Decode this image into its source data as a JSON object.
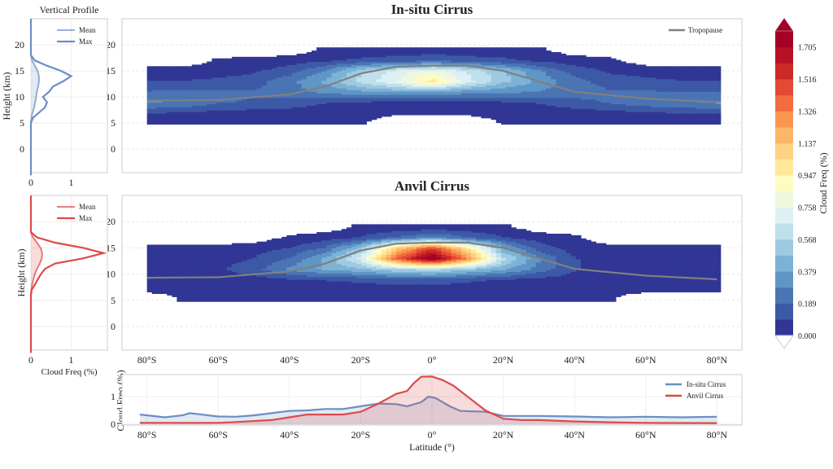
{
  "chart_data": {
    "type": "heatmap",
    "colorbar": {
      "label": "Cloud Freq (%)",
      "ticks": [
        "0.000",
        "0.189",
        "0.379",
        "0.568",
        "0.758",
        "0.947",
        "1.137",
        "1.326",
        "1.516",
        "1.705"
      ],
      "range": [
        0,
        1.8
      ],
      "extend": "both",
      "colormap": "RdYlBu_r",
      "colors": [
        "#313695",
        "#3c59a6",
        "#4a74b4",
        "#5f96c6",
        "#7cb2d6",
        "#9ecae1",
        "#bfdfeb",
        "#ddf0f4",
        "#f0f8dc",
        "#fefcc0",
        "#fee99a",
        "#fed283",
        "#fdb567",
        "#fa9650",
        "#f26c3e",
        "#e34933",
        "#cd2a27",
        "#b71127",
        "#a50026"
      ],
      "under_color": "#ffffff",
      "over_color": "#a50026"
    },
    "heatmaps": [
      {
        "title": "In-situ Cirrus",
        "xlim": [
          -87,
          87
        ],
        "ylim": [
          -4.5,
          25
        ],
        "yticks": [
          0,
          5,
          10,
          15,
          20
        ],
        "xticks": [
          -80,
          -60,
          -40,
          -20,
          0,
          20,
          40,
          60,
          80
        ],
        "xticklabels": [
          "80°S",
          "60°S",
          "40°S",
          "20°S",
          "0°",
          "20°N",
          "40°N",
          "60°N",
          "80°N"
        ],
        "show_xticklabels": false,
        "legend": "Tropopause",
        "lat": [
          -80,
          -70,
          -60,
          -50,
          -40,
          -30,
          -20,
          -10,
          0,
          10,
          20,
          30,
          40,
          50,
          60,
          70,
          80
        ],
        "height": [
          5,
          7,
          9,
          11,
          13,
          15,
          17,
          19
        ],
        "values": [
          [
            0.03,
            0.03,
            0.02,
            0.02,
            0.02,
            0.01,
            0.01,
            null,
            null,
            null,
            0.01,
            0.01,
            0.02,
            0.02,
            0.02,
            0.03,
            0.03
          ],
          [
            0.1,
            0.08,
            0.06,
            0.05,
            0.05,
            0.04,
            0.03,
            0.02,
            0.02,
            0.02,
            0.03,
            0.04,
            0.05,
            0.06,
            0.08,
            0.1,
            0.1
          ],
          [
            0.3,
            0.28,
            0.2,
            0.18,
            0.15,
            0.1,
            0.08,
            0.06,
            0.05,
            0.06,
            0.08,
            0.1,
            0.15,
            0.2,
            0.25,
            0.28,
            0.3
          ],
          [
            0.2,
            0.22,
            0.2,
            0.2,
            0.25,
            0.3,
            0.35,
            0.38,
            0.38,
            0.32,
            0.3,
            0.28,
            0.25,
            0.2,
            0.2,
            0.2,
            0.2
          ],
          [
            0.1,
            0.1,
            0.12,
            0.15,
            0.25,
            0.4,
            0.6,
            0.75,
            1.0,
            0.7,
            0.5,
            0.35,
            0.22,
            0.15,
            0.12,
            0.1,
            0.1
          ],
          [
            0.04,
            0.04,
            0.05,
            0.08,
            0.15,
            0.3,
            0.55,
            0.7,
            0.8,
            0.65,
            0.5,
            0.3,
            0.15,
            0.08,
            0.06,
            0.05,
            0.05
          ],
          [
            null,
            null,
            0.02,
            0.03,
            0.05,
            0.08,
            0.12,
            0.15,
            0.2,
            0.15,
            0.12,
            0.08,
            0.05,
            0.03,
            null,
            null,
            null
          ],
          [
            null,
            null,
            null,
            null,
            null,
            0.02,
            0.03,
            0.03,
            0.03,
            0.03,
            0.03,
            0.02,
            null,
            null,
            null,
            null,
            null
          ]
        ]
      },
      {
        "title": "Anvil Cirrus",
        "xlim": [
          -87,
          87
        ],
        "ylim": [
          -4.5,
          25
        ],
        "yticks": [
          0,
          5,
          10,
          15,
          20
        ],
        "xticks": [
          -80,
          -60,
          -40,
          -20,
          0,
          20,
          40,
          60,
          80
        ],
        "xticklabels": [
          "80°S",
          "60°S",
          "40°S",
          "20°S",
          "0°",
          "20°N",
          "40°N",
          "60°N",
          "80°N"
        ],
        "show_xticklabels": true,
        "lat": [
          -80,
          -70,
          -60,
          -50,
          -40,
          -30,
          -20,
          -10,
          0,
          10,
          20,
          30,
          40,
          50,
          60,
          70,
          80
        ],
        "height": [
          5,
          7,
          9,
          11,
          13,
          15,
          17,
          19
        ],
        "values": [
          [
            null,
            0.01,
            0.01,
            0.01,
            0.01,
            0.01,
            0.01,
            0.01,
            0.01,
            0.01,
            0.01,
            0.01,
            0.01,
            0.01,
            null,
            null,
            null
          ],
          [
            0.02,
            0.02,
            0.02,
            0.02,
            0.03,
            0.03,
            0.03,
            0.03,
            0.03,
            0.03,
            0.03,
            0.02,
            0.02,
            0.02,
            0.02,
            0.02,
            0.02
          ],
          [
            0.05,
            0.05,
            0.05,
            0.06,
            0.08,
            0.1,
            0.12,
            0.15,
            0.15,
            0.12,
            0.08,
            0.06,
            0.05,
            0.05,
            0.05,
            0.05,
            0.05
          ],
          [
            0.06,
            0.06,
            0.08,
            0.15,
            0.3,
            0.4,
            0.45,
            0.55,
            0.6,
            0.5,
            0.4,
            0.25,
            0.1,
            0.06,
            0.05,
            0.05,
            0.05
          ],
          [
            0.05,
            0.05,
            0.06,
            0.1,
            0.2,
            0.4,
            0.7,
            1.4,
            1.85,
            1.3,
            0.6,
            0.3,
            0.1,
            0.06,
            0.05,
            0.05,
            0.05
          ],
          [
            0.02,
            0.02,
            0.03,
            0.05,
            0.1,
            0.2,
            0.5,
            1.1,
            1.5,
            1.0,
            0.4,
            0.15,
            0.05,
            0.03,
            0.02,
            0.02,
            0.02
          ],
          [
            null,
            null,
            null,
            null,
            0.02,
            0.05,
            0.1,
            0.2,
            0.3,
            0.2,
            0.1,
            0.05,
            0.02,
            null,
            null,
            null,
            null
          ],
          [
            null,
            null,
            null,
            null,
            null,
            null,
            0.02,
            0.03,
            0.03,
            0.03,
            0.02,
            null,
            null,
            null,
            null,
            null,
            null
          ]
        ]
      }
    ],
    "tropopause": {
      "name": "Tropopause",
      "color": "#808080",
      "lat": [
        -80,
        -60,
        -40,
        -30,
        -20,
        -10,
        0,
        10,
        20,
        30,
        40,
        60,
        80
      ],
      "height": [
        9.3,
        9.4,
        10.5,
        12,
        14.5,
        15.8,
        16,
        16,
        15,
        13,
        11,
        9.7,
        9
      ]
    },
    "profiles": {
      "title": "Vertical Profile",
      "xlabel": "Cloud Freq (%)",
      "ylabel": "Height (km)",
      "xlim": [
        0,
        1.9
      ],
      "xticks": [
        0,
        1
      ],
      "xticklabels": [
        "0",
        "1"
      ],
      "yticks": [
        0,
        5,
        10,
        15,
        20
      ],
      "height": [
        -5,
        5,
        6,
        7,
        8,
        9,
        10,
        11,
        12,
        13,
        14,
        15,
        16,
        17,
        18,
        25
      ],
      "panels": [
        {
          "color": "#6a8fc4",
          "legend": [
            "Mean",
            "Max"
          ],
          "mean": [
            0,
            0,
            0.01,
            0.04,
            0.08,
            0.11,
            0.13,
            0.15,
            0.18,
            0.2,
            0.2,
            0.17,
            0.1,
            0.03,
            0,
            0
          ],
          "max": [
            0,
            0,
            0.05,
            0.2,
            0.35,
            0.4,
            0.3,
            0.45,
            0.55,
            0.8,
            1.0,
            0.75,
            0.4,
            0.1,
            0,
            0
          ]
        },
        {
          "color": "#dd4a4a",
          "legend": [
            "Mean",
            "Max"
          ],
          "mean": [
            0,
            0,
            0,
            0.01,
            0.03,
            0.06,
            0.1,
            0.15,
            0.22,
            0.27,
            0.28,
            0.24,
            0.15,
            0.05,
            0,
            0
          ],
          "max": [
            0,
            0,
            0,
            0.02,
            0.1,
            0.17,
            0.25,
            0.35,
            0.6,
            1.3,
            1.8,
            1.3,
            0.6,
            0.15,
            0,
            0
          ]
        }
      ]
    },
    "zonal": {
      "type": "line",
      "xlabel": "Latitude (°)",
      "ylabel": "Cloud Freq (%)",
      "xlim": [
        -87,
        87
      ],
      "ylim": [
        -0.03,
        1.8
      ],
      "yticks": [
        0,
        1
      ],
      "yticklabels": [
        "0",
        "1"
      ],
      "xticks": [
        -80,
        -60,
        -40,
        -20,
        0,
        20,
        40,
        60,
        80
      ],
      "xticklabels": [
        "80°S",
        "60°S",
        "40°S",
        "20°S",
        "0°",
        "20°N",
        "40°N",
        "60°N",
        "80°N"
      ],
      "legend_position": "top-right",
      "series": [
        {
          "name": "In-situ Cirrus",
          "color": "#6a8fc4",
          "x": [
            -82,
            -75,
            -70,
            -68,
            -60,
            -55,
            -50,
            -45,
            -40,
            -35,
            -30,
            -25,
            -20,
            -15,
            -10,
            -7,
            -3,
            -1,
            1,
            5,
            8,
            15,
            20,
            30,
            40,
            50,
            60,
            70,
            80
          ],
          "y": [
            0.35,
            0.25,
            0.32,
            0.4,
            0.28,
            0.27,
            0.32,
            0.4,
            0.48,
            0.5,
            0.55,
            0.55,
            0.65,
            0.75,
            0.73,
            0.65,
            0.8,
            1.0,
            0.95,
            0.65,
            0.48,
            0.45,
            0.3,
            0.3,
            0.28,
            0.25,
            0.27,
            0.25,
            0.27
          ]
        },
        {
          "name": "Anvil Cirrus",
          "color": "#dd4a4a",
          "x": [
            -82,
            -60,
            -55,
            -45,
            -40,
            -35,
            -30,
            -25,
            -20,
            -15,
            -10,
            -7,
            -5,
            -3,
            0,
            3,
            6,
            10,
            15,
            20,
            25,
            30,
            40,
            50,
            60,
            80
          ],
          "y": [
            0.05,
            0.05,
            0.08,
            0.15,
            0.25,
            0.35,
            0.35,
            0.35,
            0.45,
            0.75,
            1.1,
            1.2,
            1.5,
            1.72,
            1.73,
            1.6,
            1.4,
            1.0,
            0.5,
            0.2,
            0.15,
            0.15,
            0.1,
            0.07,
            0.05,
            0.04
          ]
        }
      ]
    }
  }
}
